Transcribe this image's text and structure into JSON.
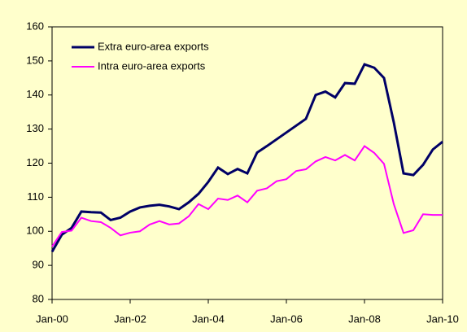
{
  "chart_data": {
    "type": "line",
    "categories": [
      "Jan-00",
      null,
      null,
      null,
      null,
      null,
      null,
      null,
      "Jan-02",
      null,
      null,
      null,
      null,
      null,
      null,
      null,
      "Jan-04",
      null,
      null,
      null,
      null,
      null,
      null,
      null,
      "Jan-06",
      null,
      null,
      null,
      null,
      null,
      null,
      null,
      "Jan-08",
      null,
      null,
      null,
      null,
      null,
      null,
      null,
      "Jan-10"
    ],
    "series": [
      {
        "name": "Extra euro-area exports",
        "color": "#000066",
        "values": [
          94,
          99,
          101,
          105.8,
          105.6,
          105.5,
          103.3,
          104,
          105.8,
          107,
          107.5,
          107.8,
          107.3,
          106.5,
          108.5,
          111,
          114.5,
          118.7,
          116.8,
          118.3,
          117,
          123.1,
          125,
          127,
          129,
          131,
          133,
          140,
          141,
          139.3,
          143.5,
          143.3,
          149,
          148,
          145,
          132,
          117,
          116.5,
          119.5,
          124,
          126.3
        ]
      },
      {
        "name": "Intra euro-area exports",
        "color": "#ff00ff",
        "values": [
          95.5,
          99.8,
          100.2,
          104,
          103,
          102.7,
          101,
          98.8,
          99.6,
          100,
          102,
          103,
          102,
          102.3,
          104.4,
          108,
          106.5,
          109.6,
          109.2,
          110.5,
          108.5,
          111.9,
          112.6,
          114.7,
          115.3,
          117.7,
          118.2,
          120.5,
          121.8,
          120.8,
          122.4,
          120.8,
          125,
          123,
          119.8,
          108,
          99.5,
          100.3,
          105,
          104.8,
          104.8
        ]
      }
    ],
    "ylim": [
      80,
      160
    ],
    "yticks": [
      80,
      90,
      100,
      110,
      120,
      130,
      140,
      150,
      160
    ],
    "legend": "upper-left"
  }
}
